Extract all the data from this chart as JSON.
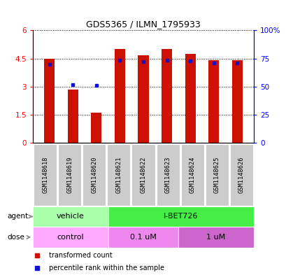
{
  "title": "GDS5365 / ILMN_1795933",
  "samples": [
    "GSM1148618",
    "GSM1148619",
    "GSM1148620",
    "GSM1148621",
    "GSM1148622",
    "GSM1148623",
    "GSM1148624",
    "GSM1148625",
    "GSM1148626"
  ],
  "red_values": [
    4.5,
    2.85,
    1.6,
    5.0,
    4.65,
    5.0,
    4.75,
    4.42,
    4.42
  ],
  "blue_values": [
    4.2,
    3.1,
    3.05,
    4.42,
    4.35,
    4.42,
    4.38,
    4.25,
    4.25
  ],
  "ylim_left": [
    0,
    6
  ],
  "ylim_right": [
    0,
    100
  ],
  "yticks_left": [
    0,
    1.5,
    3.0,
    4.5,
    6.0
  ],
  "ytick_labels_left": [
    "0",
    "1.5",
    "3",
    "4.5",
    "6"
  ],
  "yticks_right": [
    0,
    25,
    50,
    75,
    100
  ],
  "ytick_labels_right": [
    "0",
    "25",
    "50",
    "75",
    "100%"
  ],
  "red_color": "#cc1100",
  "blue_color": "#1111cc",
  "bar_width": 0.45,
  "vehicle_color": "#aaffaa",
  "ibet_color": "#44ee44",
  "control_color": "#ffaaff",
  "um01_color": "#ee88ee",
  "um1_color": "#cc66cc",
  "sample_bg_color": "#cccccc",
  "legend_red": "transformed count",
  "legend_blue": "percentile rank within the sample"
}
